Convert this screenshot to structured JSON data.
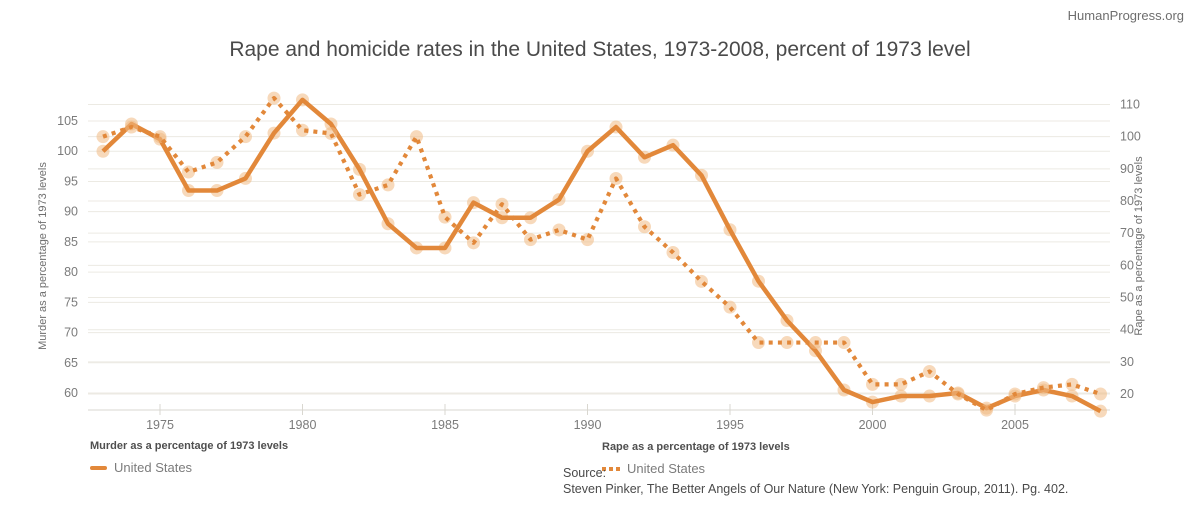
{
  "header": {
    "watermark": "HumanProgress.org",
    "title": "Rape and homicide rates in the United States, 1973-2008, percent of 1973 level"
  },
  "legends": {
    "murder": {
      "title": "Murder as a percentage of 1973 levels",
      "item": "United States"
    },
    "rape": {
      "title": "Rape as a percentage of 1973 levels",
      "item": "United States"
    }
  },
  "source": {
    "label": "Source:",
    "citation": "Steven Pinker, The Better Angels of Our Nature (New York: Penguin Group, 2011). Pg. 402."
  },
  "chart_data": {
    "type": "line",
    "title": "Rape and homicide rates in the United States, 1973-2008, percent of 1973 level",
    "x": [
      1973,
      1974,
      1975,
      1976,
      1977,
      1978,
      1979,
      1980,
      1981,
      1982,
      1983,
      1984,
      1985,
      1986,
      1987,
      1988,
      1989,
      1990,
      1991,
      1992,
      1993,
      1994,
      1995,
      1996,
      1997,
      1998,
      1999,
      2000,
      2001,
      2002,
      2003,
      2004,
      2005,
      2006,
      2007,
      2008
    ],
    "x_ticks": [
      1975,
      1980,
      1985,
      1990,
      1995,
      2000,
      2005
    ],
    "series": [
      {
        "name": "United States (Murder)",
        "axis": "left",
        "style": "solid",
        "values": [
          100,
          104.5,
          102,
          93.5,
          93.5,
          95.5,
          103,
          108.5,
          104.5,
          97,
          88,
          84,
          84,
          91.5,
          89,
          89,
          92,
          100,
          104,
          99,
          101,
          96,
          87,
          78.5,
          72,
          67,
          60.5,
          58.5,
          59.5,
          59.5,
          60,
          57.5,
          59.5,
          60.5,
          59.5,
          57
        ]
      },
      {
        "name": "United States (Rape)",
        "axis": "right",
        "style": "dotted",
        "values": [
          100,
          103,
          100,
          89,
          92,
          100,
          112,
          102,
          101,
          82,
          85,
          100,
          75,
          67,
          79,
          68,
          71,
          68,
          87,
          72,
          64,
          55,
          47,
          36,
          36,
          36,
          36,
          23,
          23,
          27,
          20,
          15,
          20,
          22,
          23,
          20
        ]
      }
    ],
    "left_axis": {
      "title": "Murder as a percentage of 1973 levels",
      "ticks": [
        60,
        65,
        70,
        75,
        80,
        85,
        90,
        95,
        100,
        105
      ]
    },
    "right_axis": {
      "title": "Rape as a percentage of 1973 levels",
      "ticks": [
        20,
        30,
        40,
        50,
        60,
        70,
        80,
        90,
        100,
        110
      ]
    },
    "grid": true,
    "legend_position": "bottom",
    "colors": {
      "line": "#E2883A",
      "marker": "#F0BA84",
      "grid": "#ECEAE3",
      "axis": "#D9D7D0",
      "tick_text": "#7B7B7B",
      "title_text": "#4A4A4A"
    }
  }
}
